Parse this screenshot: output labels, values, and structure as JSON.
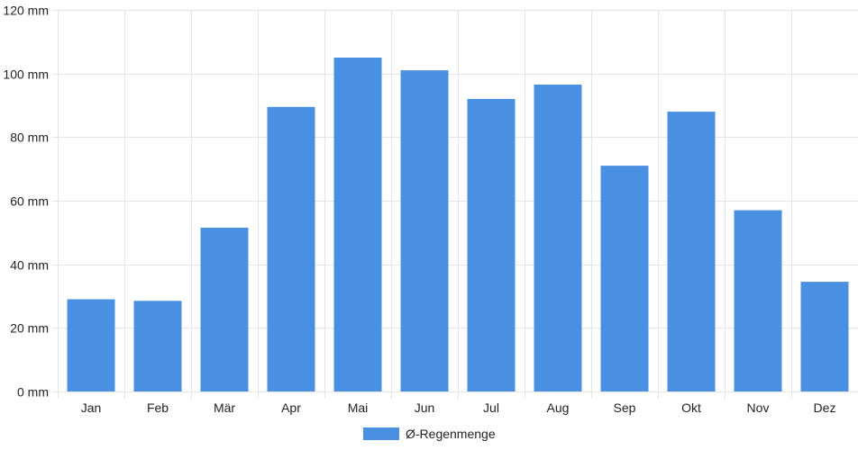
{
  "chart_data": {
    "type": "bar",
    "categories": [
      "Jan",
      "Feb",
      "Mär",
      "Apr",
      "Mai",
      "Jun",
      "Jul",
      "Aug",
      "Sep",
      "Okt",
      "Nov",
      "Dez"
    ],
    "series": [
      {
        "name": "Ø-Regenmenge",
        "values": [
          29,
          28.5,
          51.5,
          89.5,
          105,
          101,
          92,
          96.5,
          71,
          88,
          57,
          34.5
        ],
        "color": "#4a90e2"
      }
    ],
    "y_ticks": [
      0,
      20,
      40,
      60,
      80,
      100,
      120
    ],
    "y_unit": "mm",
    "ylim": [
      0,
      120
    ],
    "grid": true,
    "legend_position": "bottom-center",
    "title": "",
    "xlabel": "",
    "ylabel": ""
  }
}
